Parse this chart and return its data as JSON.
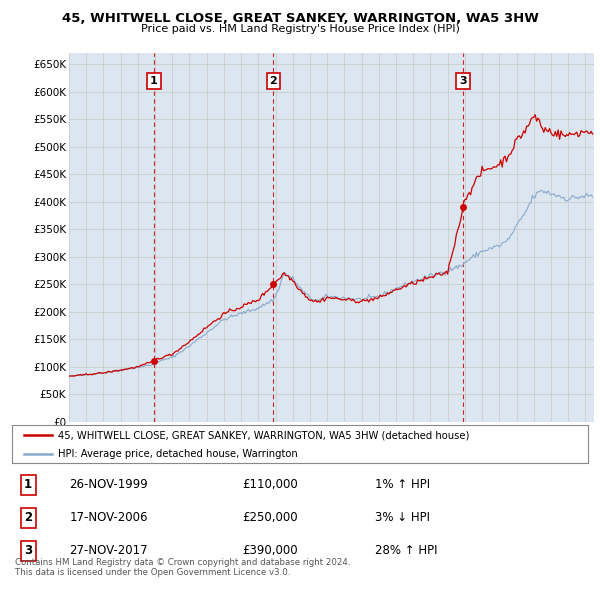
{
  "title1": "45, WHITWELL CLOSE, GREAT SANKEY, WARRINGTON, WA5 3HW",
  "title2": "Price paid vs. HM Land Registry's House Price Index (HPI)",
  "ylabel_ticks": [
    "£0",
    "£50K",
    "£100K",
    "£150K",
    "£200K",
    "£250K",
    "£300K",
    "£350K",
    "£400K",
    "£450K",
    "£500K",
    "£550K",
    "£600K",
    "£650K"
  ],
  "ytick_values": [
    0,
    50000,
    100000,
    150000,
    200000,
    250000,
    300000,
    350000,
    400000,
    450000,
    500000,
    550000,
    600000,
    650000
  ],
  "xlim_start": 1995.0,
  "xlim_end": 2025.5,
  "ylim_min": 0,
  "ylim_max": 670000,
  "sale_dates": [
    1999.92,
    2006.88,
    2017.9
  ],
  "sale_prices": [
    110000,
    250000,
    390000
  ],
  "sale_labels": [
    "1",
    "2",
    "3"
  ],
  "red_line_color": "#cc0000",
  "blue_line_color": "#88aacc",
  "dashed_line_color": "#cc0000",
  "grid_color": "#cccccc",
  "chart_bg_color": "#dce6f0",
  "background_color": "#ffffff",
  "legend_line1": "45, WHITWELL CLOSE, GREAT SANKEY, WARRINGTON, WA5 3HW (detached house)",
  "legend_line2": "HPI: Average price, detached house, Warrington",
  "table_entries": [
    {
      "num": "1",
      "date": "26-NOV-1999",
      "price": "£110,000",
      "pct": "1% ↑ HPI"
    },
    {
      "num": "2",
      "date": "17-NOV-2006",
      "price": "£250,000",
      "pct": "3% ↓ HPI"
    },
    {
      "num": "3",
      "date": "27-NOV-2017",
      "price": "£390,000",
      "pct": "28% ↑ HPI"
    }
  ],
  "footer": "Contains HM Land Registry data © Crown copyright and database right 2024.\nThis data is licensed under the Open Government Licence v3.0."
}
